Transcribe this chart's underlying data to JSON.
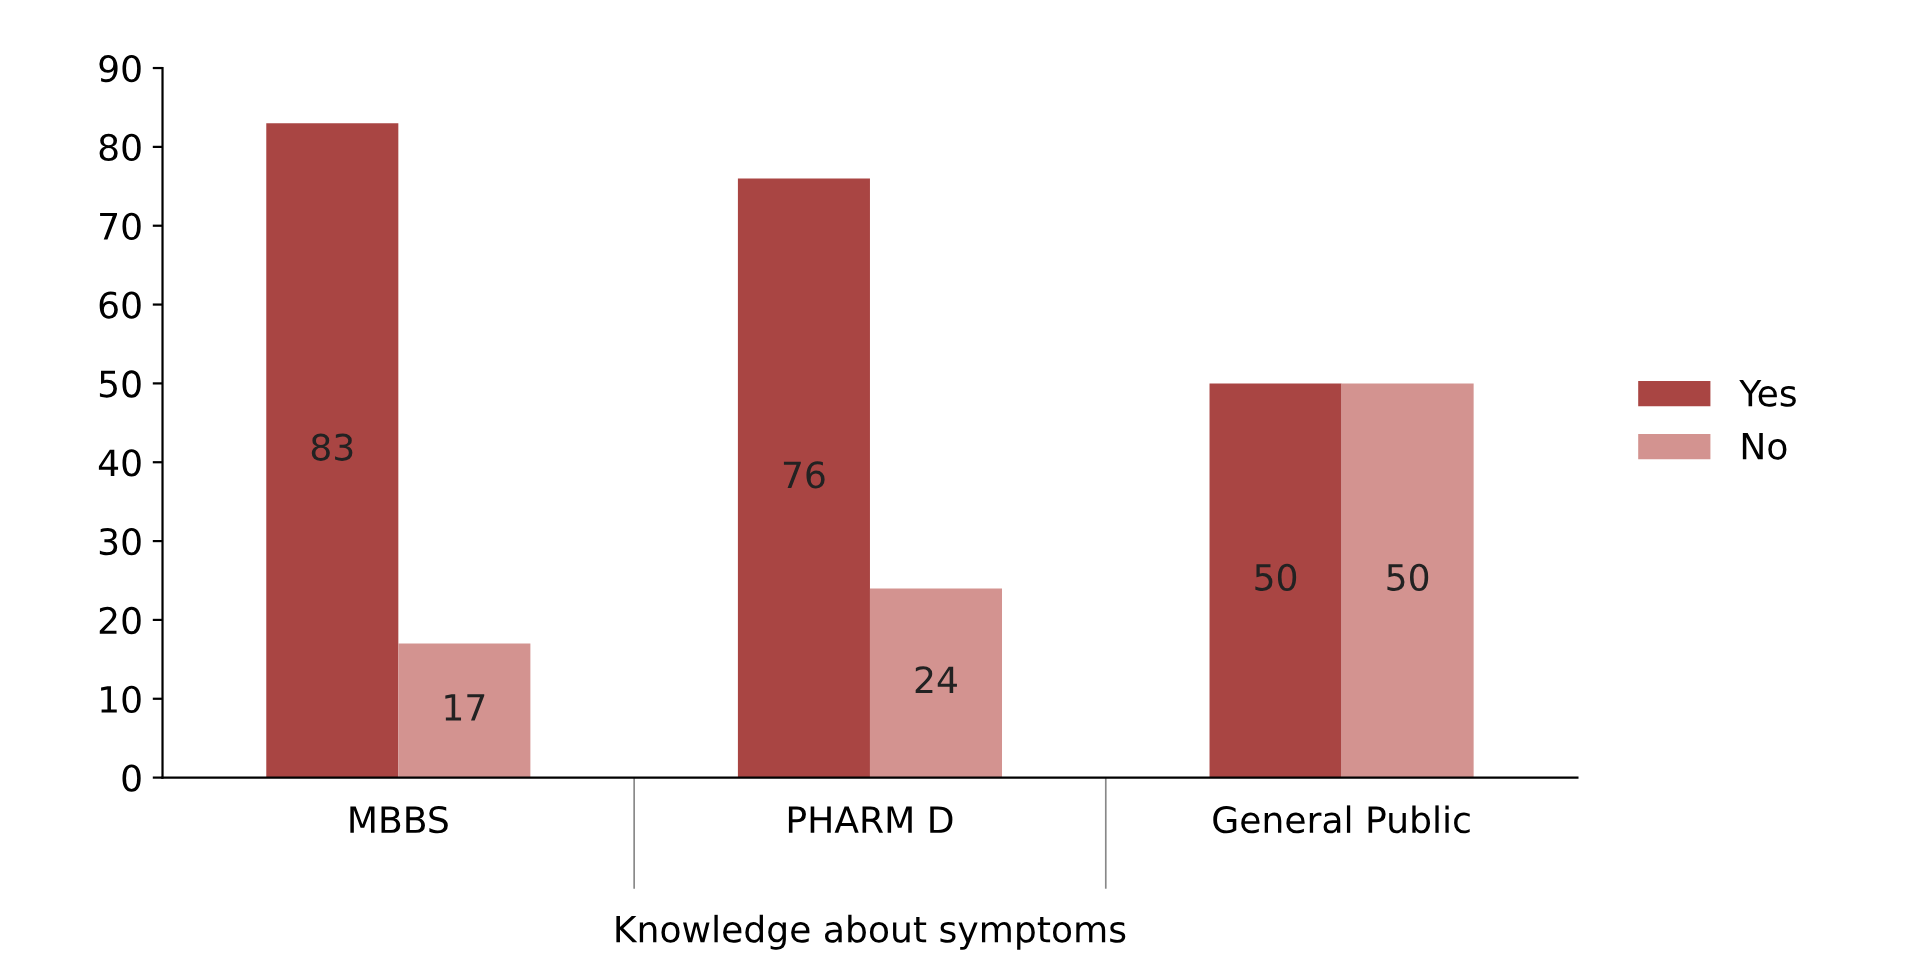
{
  "chart_data": {
    "type": "bar",
    "xlabel": "Knowledge about symptoms",
    "categories": [
      "MBBS",
      "PHARM D",
      "General Public"
    ],
    "series": [
      {
        "name": "Yes",
        "color": "#a94543",
        "values": [
          83,
          76,
          50
        ]
      },
      {
        "name": "No",
        "color": "#d39390",
        "values": [
          17,
          24,
          50
        ]
      }
    ],
    "ylim": [
      0,
      90
    ],
    "yticks": [
      0,
      10,
      20,
      30,
      40,
      50,
      60,
      70,
      80,
      90
    ],
    "data_labels": true,
    "legend": "right",
    "grid": false
  }
}
